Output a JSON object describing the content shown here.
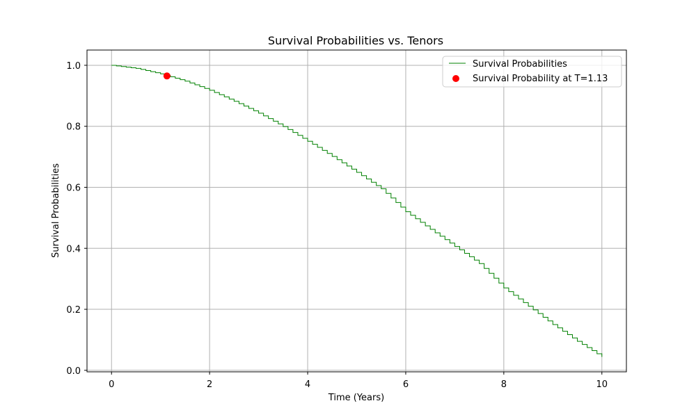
{
  "chart_data": {
    "type": "line",
    "title": "Survival Probabilities vs. Tenors",
    "xlabel": "Time (Years)",
    "ylabel": "Survival Probabilities",
    "xlim": [
      -0.5,
      10.5
    ],
    "ylim": [
      -0.005,
      1.05
    ],
    "x_ticks": [
      0,
      2,
      4,
      6,
      8,
      10
    ],
    "x_tick_labels": [
      "0",
      "2",
      "4",
      "6",
      "8",
      "10"
    ],
    "y_ticks": [
      0.0,
      0.2,
      0.4,
      0.6,
      0.8,
      1.0
    ],
    "y_tick_labels": [
      "0.0",
      "0.2",
      "0.4",
      "0.6",
      "0.8",
      "1.0"
    ],
    "grid": true,
    "legend_position": "top-right",
    "series": [
      {
        "name": "Survival Probabilities",
        "kind": "step-line",
        "color": "#008000",
        "step": 0.1,
        "x": [
          0,
          0.5,
          1,
          1.5,
          2,
          2.5,
          3,
          3.5,
          4,
          4.5,
          5,
          5.5,
          6,
          6.5,
          7,
          7.5,
          8,
          8.5,
          9,
          9.5,
          10
        ],
        "values": [
          1.0,
          0.99,
          0.972,
          0.948,
          0.918,
          0.882,
          0.843,
          0.799,
          0.751,
          0.701,
          0.649,
          0.595,
          0.52,
          0.462,
          0.406,
          0.35,
          0.27,
          0.21,
          0.15,
          0.095,
          0.044
        ]
      },
      {
        "name": "Survival Probability at T=1.13",
        "kind": "point",
        "color": "#ff0000",
        "x": [
          1.13
        ],
        "values": [
          0.965
        ]
      }
    ]
  }
}
